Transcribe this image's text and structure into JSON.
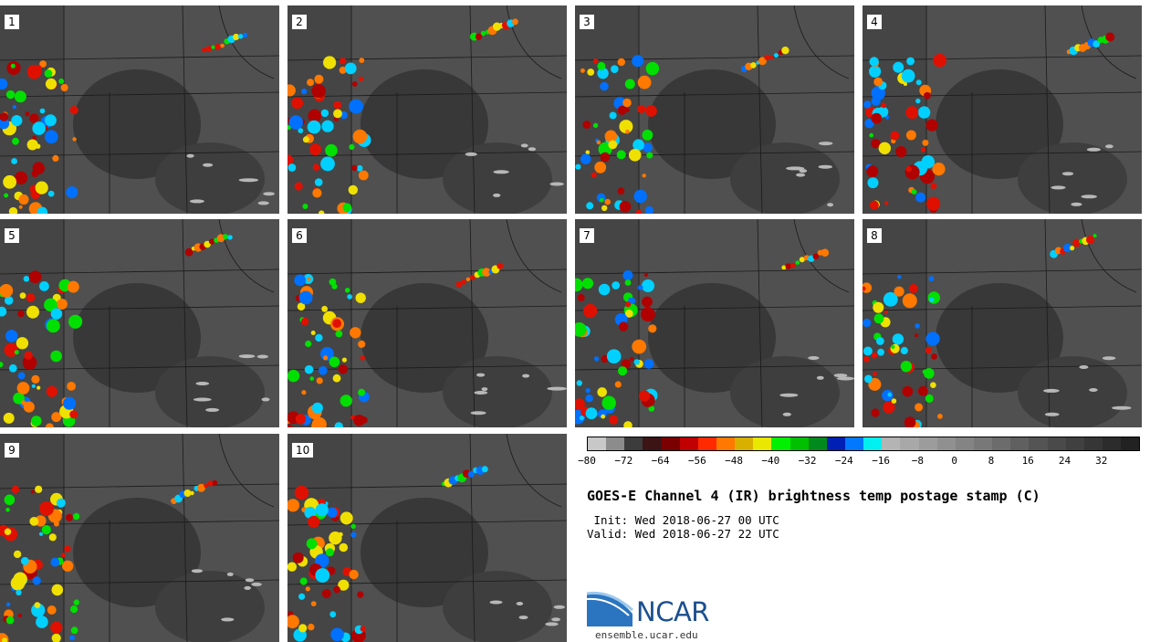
{
  "panels": [
    {
      "label": "1"
    },
    {
      "label": "2"
    },
    {
      "label": "3"
    },
    {
      "label": "4"
    },
    {
      "label": "5"
    },
    {
      "label": "6"
    },
    {
      "label": "7"
    },
    {
      "label": "8"
    },
    {
      "label": "9"
    },
    {
      "label": "10"
    }
  ],
  "colorbar": {
    "ticks": [
      "−80",
      "−72",
      "−64",
      "−56",
      "−48",
      "−40",
      "−32",
      "−24",
      "−16",
      "−8",
      "0",
      "8",
      "16",
      "24",
      "32"
    ],
    "colors": [
      "#c8c8c8",
      "#8c8c8c",
      "#3c3c3c",
      "#3c1414",
      "#7a0000",
      "#c00000",
      "#ff2a00",
      "#ff7800",
      "#d8b000",
      "#e8e800",
      "#00f000",
      "#00c000",
      "#008a1e",
      "#0020b4",
      "#0078ff",
      "#00f0f0",
      "#b4b4b4",
      "#a8a8a8",
      "#9c9c9c",
      "#909090",
      "#848484",
      "#787878",
      "#6c6c6c",
      "#606060",
      "#545454",
      "#4a4a4a",
      "#404040",
      "#363636",
      "#2c2c2c",
      "#222222"
    ]
  },
  "title": "GOES-E Channel 4 (IR) brightness temp postage stamp (C)",
  "init_text": " Init: Wed 2018-06-27 00 UTC",
  "valid_text": "Valid: Wed 2018-06-27 22 UTC",
  "logo_text": "NCAR",
  "site_text": "ensemble.ucar.edu"
}
